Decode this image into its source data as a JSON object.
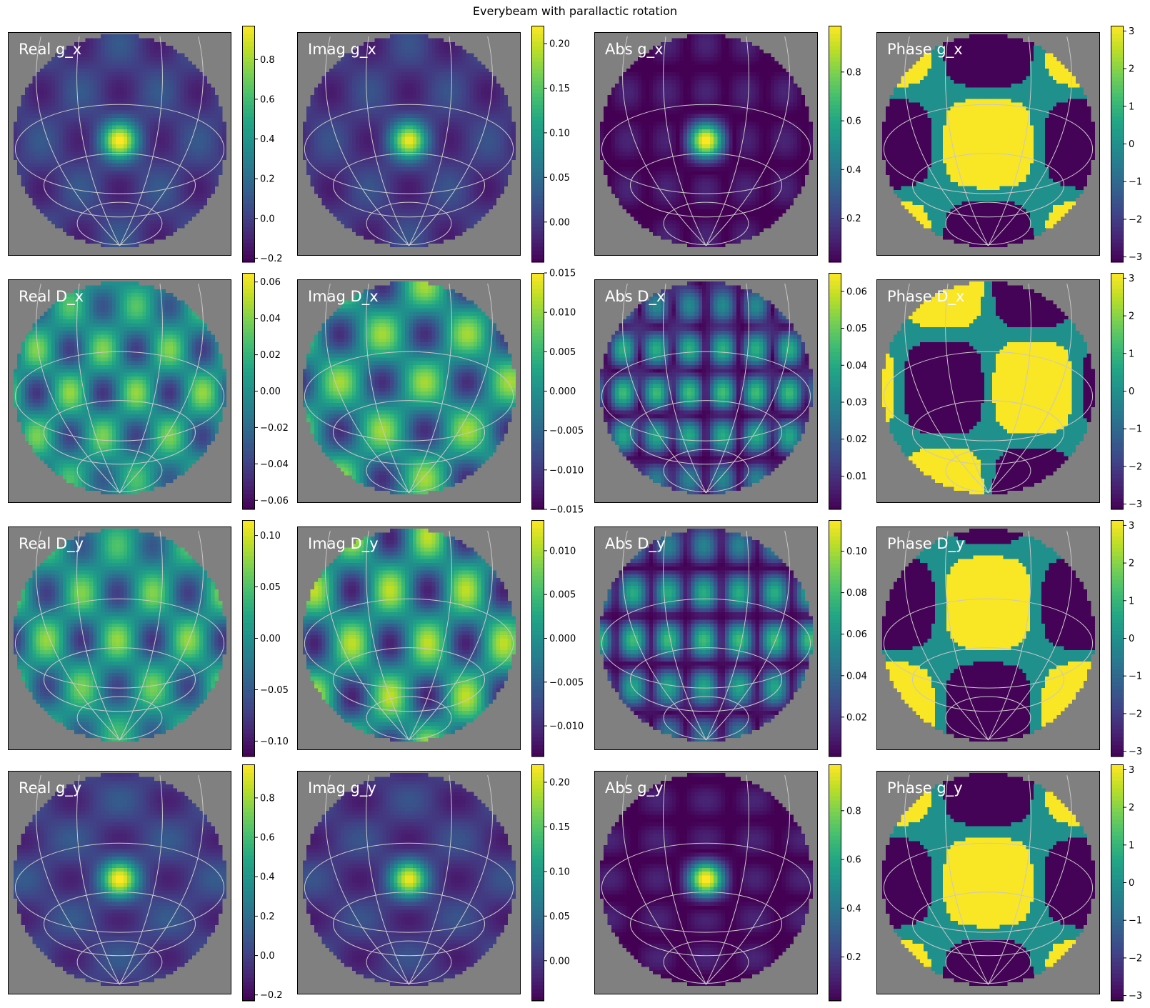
{
  "title": "Everybeam with parallactic rotation",
  "colormap": "viridis",
  "background_color": "#808080",
  "grid_color": "#c8c8c8",
  "chart_data": [
    {
      "type": "heatmap",
      "label": "Real g_x",
      "pattern": "g_x",
      "component": "real",
      "clim": [
        -0.22,
        0.97
      ],
      "ticks": [
        -0.2,
        0.0,
        0.2,
        0.4,
        0.6,
        0.8
      ],
      "tick_labels": [
        "−0.2",
        "0.0",
        "0.2",
        "0.4",
        "0.6",
        "0.8"
      ]
    },
    {
      "type": "heatmap",
      "label": "Imag g_x",
      "pattern": "g_x",
      "component": "imag",
      "clim": [
        -0.045,
        0.22
      ],
      "ticks": [
        0.0,
        0.05,
        0.1,
        0.15,
        0.2
      ],
      "tick_labels": [
        "0.00",
        "0.05",
        "0.10",
        "0.15",
        "0.20"
      ]
    },
    {
      "type": "heatmap",
      "label": "Abs g_x",
      "pattern": "g_x",
      "component": "abs",
      "clim": [
        0.02,
        0.99
      ],
      "ticks": [
        0.2,
        0.4,
        0.6,
        0.8
      ],
      "tick_labels": [
        "0.2",
        "0.4",
        "0.6",
        "0.8"
      ]
    },
    {
      "type": "heatmap",
      "label": "Phase g_x",
      "pattern": "g_x",
      "component": "phase",
      "clim": [
        -3.14,
        3.14
      ],
      "ticks": [
        -3,
        -2,
        -1,
        0,
        1,
        2,
        3
      ],
      "tick_labels": [
        "−3",
        "−2",
        "−1",
        "0",
        "1",
        "2",
        "3"
      ]
    },
    {
      "type": "heatmap",
      "label": "Real D_x",
      "pattern": "D_x",
      "component": "real",
      "clim": [
        -0.065,
        0.065
      ],
      "ticks": [
        -0.06,
        -0.04,
        -0.02,
        0.0,
        0.02,
        0.04,
        0.06
      ],
      "tick_labels": [
        "−0.06",
        "−0.04",
        "−0.02",
        "0.00",
        "0.02",
        "0.04",
        "0.06"
      ]
    },
    {
      "type": "heatmap",
      "label": "Imag D_x",
      "pattern": "D_x",
      "component": "imag",
      "clim": [
        -0.015,
        0.015
      ],
      "ticks": [
        -0.015,
        -0.01,
        -0.005,
        0.0,
        0.005,
        0.01,
        0.015
      ],
      "tick_labels": [
        "−0.015",
        "−0.010",
        "−0.005",
        "0.000",
        "0.005",
        "0.010",
        "0.015"
      ]
    },
    {
      "type": "heatmap",
      "label": "Abs D_x",
      "pattern": "D_x",
      "component": "abs",
      "clim": [
        0.001,
        0.065
      ],
      "ticks": [
        0.01,
        0.02,
        0.03,
        0.04,
        0.05,
        0.06
      ],
      "tick_labels": [
        "0.01",
        "0.02",
        "0.03",
        "0.04",
        "0.05",
        "0.06"
      ]
    },
    {
      "type": "heatmap",
      "label": "Phase D_x",
      "pattern": "D_x",
      "component": "phase",
      "clim": [
        -3.14,
        3.14
      ],
      "ticks": [
        -3,
        -2,
        -1,
        0,
        1,
        2,
        3
      ],
      "tick_labels": [
        "−3",
        "−2",
        "−1",
        "0",
        "1",
        "2",
        "3"
      ]
    },
    {
      "type": "heatmap",
      "label": "Real D_y",
      "pattern": "D_y",
      "component": "real",
      "clim": [
        -0.115,
        0.115
      ],
      "ticks": [
        -0.1,
        -0.05,
        0.0,
        0.05,
        0.1
      ],
      "tick_labels": [
        "−0.10",
        "−0.05",
        "0.00",
        "0.05",
        "0.10"
      ]
    },
    {
      "type": "heatmap",
      "label": "Imag D_y",
      "pattern": "D_y",
      "component": "imag",
      "clim": [
        -0.0135,
        0.0135
      ],
      "ticks": [
        -0.01,
        -0.005,
        0.0,
        0.005,
        0.01
      ],
      "tick_labels": [
        "−0.010",
        "−0.005",
        "0.000",
        "0.005",
        "0.010"
      ]
    },
    {
      "type": "heatmap",
      "label": "Abs D_y",
      "pattern": "D_y",
      "component": "abs",
      "clim": [
        0.001,
        0.115
      ],
      "ticks": [
        0.02,
        0.04,
        0.06,
        0.08,
        0.1
      ],
      "tick_labels": [
        "0.02",
        "0.04",
        "0.06",
        "0.08",
        "0.10"
      ]
    },
    {
      "type": "heatmap",
      "label": "Phase D_y",
      "pattern": "D_y",
      "component": "phase",
      "clim": [
        -3.14,
        3.14
      ],
      "ticks": [
        -3,
        -2,
        -1,
        0,
        1,
        2,
        3
      ],
      "tick_labels": [
        "−3",
        "−2",
        "−1",
        "0",
        "1",
        "2",
        "3"
      ]
    },
    {
      "type": "heatmap",
      "label": "Real g_y",
      "pattern": "g_y",
      "component": "real",
      "clim": [
        -0.23,
        0.97
      ],
      "ticks": [
        -0.2,
        0.0,
        0.2,
        0.4,
        0.6,
        0.8
      ],
      "tick_labels": [
        "−0.2",
        "0.0",
        "0.2",
        "0.4",
        "0.6",
        "0.8"
      ]
    },
    {
      "type": "heatmap",
      "label": "Imag g_y",
      "pattern": "g_y",
      "component": "imag",
      "clim": [
        -0.045,
        0.22
      ],
      "ticks": [
        0.0,
        0.05,
        0.1,
        0.15,
        0.2
      ],
      "tick_labels": [
        "0.00",
        "0.05",
        "0.10",
        "0.15",
        "0.20"
      ]
    },
    {
      "type": "heatmap",
      "label": "Abs g_y",
      "pattern": "g_y",
      "component": "abs",
      "clim": [
        0.02,
        0.99
      ],
      "ticks": [
        0.2,
        0.4,
        0.6,
        0.8
      ],
      "tick_labels": [
        "0.2",
        "0.4",
        "0.6",
        "0.8"
      ]
    },
    {
      "type": "heatmap",
      "label": "Phase g_y",
      "pattern": "g_y",
      "component": "phase",
      "clim": [
        -3.14,
        3.14
      ],
      "ticks": [
        -3,
        -2,
        -1,
        0,
        1,
        2,
        3
      ],
      "tick_labels": [
        "−3",
        "−2",
        "−1",
        "0",
        "1",
        "2",
        "3"
      ]
    }
  ]
}
